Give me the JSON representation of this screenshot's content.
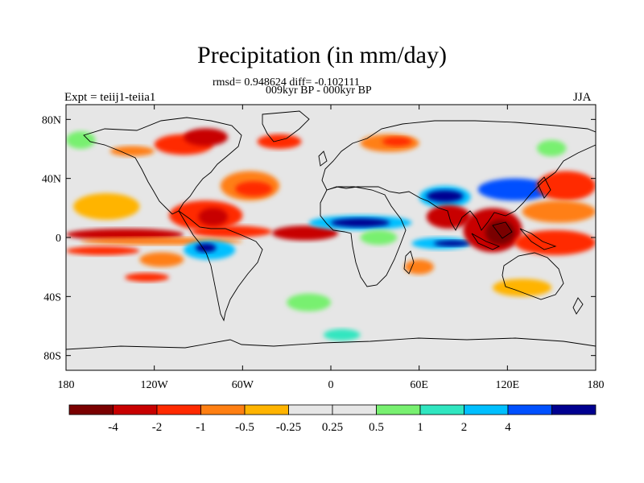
{
  "title": "Precipitation (in mm/day)",
  "subtitle_stats": "rmsd= 0.948624 diff= -0.102111",
  "subtitle_period": "009kyr BP - 000kyr BP",
  "left_label": "Expt = teiij1-teiia1",
  "right_label": "JJA",
  "map": {
    "projection": "cylindrical equidistant",
    "lon_range": [
      -180,
      180
    ],
    "lat_range": [
      -90,
      90
    ],
    "lat_ticks": [
      {
        "value": 80,
        "label": "80N"
      },
      {
        "value": 40,
        "label": "40N"
      },
      {
        "value": 0,
        "label": "0"
      },
      {
        "value": -40,
        "label": "40S"
      },
      {
        "value": -80,
        "label": "80S"
      }
    ],
    "lon_ticks": [
      {
        "value": -180,
        "label": "180"
      },
      {
        "value": -120,
        "label": "120W"
      },
      {
        "value": -60,
        "label": "60W"
      },
      {
        "value": 0,
        "label": "0"
      },
      {
        "value": 60,
        "label": "60E"
      },
      {
        "value": 120,
        "label": "120E"
      },
      {
        "value": 180,
        "label": "180"
      }
    ],
    "background_color": "#e6e6e6",
    "anomaly_regions": [
      {
        "lon": [
          -180,
          -100
        ],
        "lat": [
          -2,
          6
        ],
        "level": "-2"
      },
      {
        "lon": [
          -95,
          -40
        ],
        "lat": [
          0,
          8
        ],
        "level": "-1"
      },
      {
        "lon": [
          -40,
          5
        ],
        "lat": [
          -2,
          8
        ],
        "level": "-2"
      },
      {
        "lon": [
          -170,
          -60
        ],
        "lat": [
          -5,
          0
        ],
        "level": "-0.5"
      },
      {
        "lon": [
          -180,
          -130
        ],
        "lat": [
          -12,
          -6
        ],
        "level": "-1"
      },
      {
        "lon": [
          -130,
          -100
        ],
        "lat": [
          -20,
          -10
        ],
        "level": "-0.5"
      },
      {
        "lon": [
          -140,
          -110
        ],
        "lat": [
          -30,
          -24
        ],
        "level": "-1"
      },
      {
        "lon": [
          -175,
          -130
        ],
        "lat": [
          12,
          30
        ],
        "level": "-0.25"
      },
      {
        "lon": [
          -110,
          -60
        ],
        "lat": [
          5,
          25
        ],
        "level": "-1"
      },
      {
        "lon": [
          -90,
          -70
        ],
        "lat": [
          8,
          20
        ],
        "level": "-2"
      },
      {
        "lon": [
          -75,
          -35
        ],
        "lat": [
          25,
          45
        ],
        "level": "-0.5"
      },
      {
        "lon": [
          -65,
          -40
        ],
        "lat": [
          28,
          38
        ],
        "level": "-1"
      },
      {
        "lon": [
          -120,
          -80
        ],
        "lat": [
          56,
          70
        ],
        "level": "-1"
      },
      {
        "lon": [
          -100,
          -70
        ],
        "lat": [
          62,
          74
        ],
        "level": "-2"
      },
      {
        "lon": [
          -150,
          -120
        ],
        "lat": [
          55,
          62
        ],
        "level": "-0.5"
      },
      {
        "lon": [
          -50,
          -20
        ],
        "lat": [
          60,
          70
        ],
        "level": "-1"
      },
      {
        "lon": [
          20,
          60
        ],
        "lat": [
          58,
          70
        ],
        "level": "-0.5"
      },
      {
        "lon": [
          35,
          55
        ],
        "lat": [
          62,
          68
        ],
        "level": "-1"
      },
      {
        "lon": [
          -100,
          -65
        ],
        "lat": [
          -15,
          -2
        ],
        "level": "1"
      },
      {
        "lon": [
          -92,
          -78
        ],
        "lat": [
          -10,
          -4
        ],
        "level": "4"
      },
      {
        "lon": [
          -15,
          55
        ],
        "lat": [
          5,
          15
        ],
        "level": "1"
      },
      {
        "lon": [
          0,
          40
        ],
        "lat": [
          7,
          13
        ],
        "level": "4"
      },
      {
        "lon": [
          60,
          95
        ],
        "lat": [
          20,
          35
        ],
        "level": "1"
      },
      {
        "lon": [
          65,
          90
        ],
        "lat": [
          24,
          32
        ],
        "level": "4"
      },
      {
        "lon": [
          100,
          150
        ],
        "lat": [
          25,
          40
        ],
        "level": "2"
      },
      {
        "lon": [
          55,
          95
        ],
        "lat": [
          -8,
          0
        ],
        "level": "1"
      },
      {
        "lon": [
          70,
          95
        ],
        "lat": [
          -6,
          -2
        ],
        "level": "4"
      },
      {
        "lon": [
          -180,
          -160
        ],
        "lat": [
          60,
          72
        ],
        "level": "0.25"
      },
      {
        "lon": [
          140,
          160
        ],
        "lat": [
          55,
          66
        ],
        "level": "0.25"
      },
      {
        "lon": [
          20,
          45
        ],
        "lat": [
          -5,
          5
        ],
        "level": "0.25"
      },
      {
        "lon": [
          65,
          95
        ],
        "lat": [
          6,
          22
        ],
        "level": "-2"
      },
      {
        "lon": [
          90,
          130
        ],
        "lat": [
          -10,
          20
        ],
        "level": "-2"
      },
      {
        "lon": [
          105,
          125
        ],
        "lat": [
          -5,
          12
        ],
        "level": "-4"
      },
      {
        "lon": [
          125,
          180
        ],
        "lat": [
          -12,
          5
        ],
        "level": "-1"
      },
      {
        "lon": [
          140,
          180
        ],
        "lat": [
          25,
          45
        ],
        "level": "-1"
      },
      {
        "lon": [
          130,
          180
        ],
        "lat": [
          10,
          25
        ],
        "level": "-0.5"
      },
      {
        "lon": [
          50,
          70
        ],
        "lat": [
          -25,
          -15
        ],
        "level": "-0.5"
      },
      {
        "lon": [
          110,
          150
        ],
        "lat": [
          -40,
          -28
        ],
        "level": "-0.25"
      },
      {
        "lon": [
          -30,
          0
        ],
        "lat": [
          -50,
          -38
        ],
        "level": "0.25"
      },
      {
        "lon": [
          -5,
          20
        ],
        "lat": [
          -70,
          -62
        ],
        "level": "0.5"
      }
    ],
    "coastline_color": "#000000"
  },
  "colorbar": {
    "colors": [
      "#7a0000",
      "#c80000",
      "#ff2a00",
      "#ff7f12",
      "#ffb400",
      "#e6e6e6",
      "#e6e6e6",
      "#78f070",
      "#30e6c0",
      "#00bfff",
      "#0050ff",
      "#000090"
    ],
    "labels": [
      "-4",
      "-2",
      "-1",
      "-0.5",
      "-0.25",
      "0.25",
      "0.5",
      "1",
      "2",
      "4"
    ],
    "level_colors": {
      "-4": "#7a0000",
      "-2": "#c80000",
      "-1": "#ff2a00",
      "-0.5": "#ff7f12",
      "-0.25": "#ffb400",
      "0.25": "#78f070",
      "0.5": "#30e6c0",
      "1": "#00bfff",
      "2": "#0050ff",
      "4": "#000090"
    }
  }
}
